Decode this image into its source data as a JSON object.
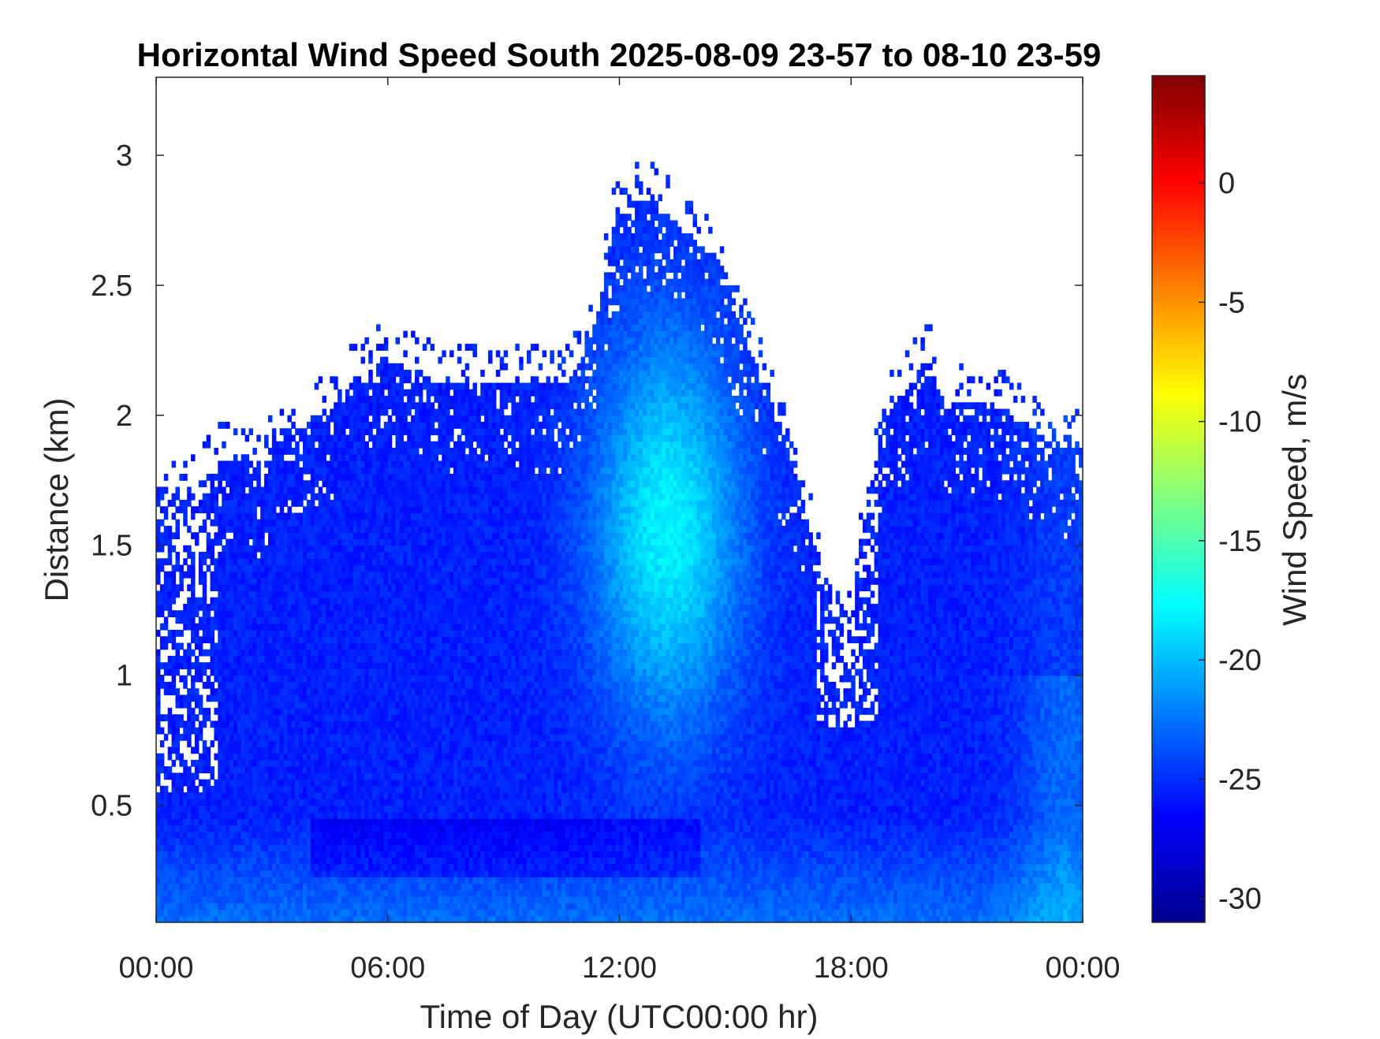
{
  "chart_data": {
    "type": "heatmap",
    "title": "Horizontal Wind Speed South 2025-08-09 23-57 to 08-10 23-59",
    "xlabel": "Time of Day (UTC00:00 hr)",
    "ylabel": "Distance (km)",
    "colorbar_label": "Wind Speed, m/s",
    "colormap": "jet",
    "x_ticks": [
      {
        "value": 0,
        "label": "00:00"
      },
      {
        "value": 6,
        "label": "06:00"
      },
      {
        "value": 12,
        "label": "12:00"
      },
      {
        "value": 18,
        "label": "18:00"
      },
      {
        "value": 24,
        "label": "00:00"
      }
    ],
    "y_ticks": [
      {
        "value": 0.5,
        "label": "0.5"
      },
      {
        "value": 1,
        "label": "1"
      },
      {
        "value": 1.5,
        "label": "1.5"
      },
      {
        "value": 2,
        "label": "2"
      },
      {
        "value": 2.5,
        "label": "2.5"
      },
      {
        "value": 3,
        "label": "3"
      }
    ],
    "colorbar_ticks": [
      {
        "value": 0,
        "label": "0"
      },
      {
        "value": -5,
        "label": "-5"
      },
      {
        "value": -10,
        "label": "-10"
      },
      {
        "value": -15,
        "label": "-15"
      },
      {
        "value": -20,
        "label": "-20"
      },
      {
        "value": -25,
        "label": "-25"
      },
      {
        "value": -30,
        "label": "-30"
      }
    ],
    "xlim": [
      0,
      24
    ],
    "ylim": [
      0.05,
      3.3
    ],
    "clim": [
      -31,
      4.5
    ],
    "data_top_km": [
      [
        0.0,
        1.7
      ],
      [
        1.0,
        1.7
      ],
      [
        1.5,
        1.8
      ],
      [
        2.5,
        1.8
      ],
      [
        2.8,
        1.7
      ],
      [
        3.0,
        1.9
      ],
      [
        3.5,
        1.95
      ],
      [
        4.5,
        2.0
      ],
      [
        5.0,
        2.1
      ],
      [
        6.0,
        2.2
      ],
      [
        7.5,
        2.1
      ],
      [
        9.0,
        2.1
      ],
      [
        10.5,
        2.1
      ],
      [
        11.0,
        2.2
      ],
      [
        11.5,
        2.4
      ],
      [
        11.8,
        2.7
      ],
      [
        12.2,
        2.8
      ],
      [
        13.0,
        2.8
      ],
      [
        13.5,
        2.7
      ],
      [
        14.5,
        2.6
      ],
      [
        15.0,
        2.35
      ],
      [
        15.5,
        2.2
      ],
      [
        16.0,
        2.0
      ],
      [
        16.5,
        1.8
      ],
      [
        17.0,
        1.5
      ],
      [
        17.5,
        1.3
      ],
      [
        18.0,
        1.2
      ],
      [
        18.5,
        1.8
      ],
      [
        19.0,
        2.0
      ],
      [
        19.5,
        2.1
      ],
      [
        20.0,
        2.2
      ],
      [
        20.5,
        2.0
      ],
      [
        21.0,
        2.05
      ],
      [
        22.0,
        2.0
      ],
      [
        23.0,
        1.9
      ],
      [
        24.0,
        1.85
      ]
    ]
  }
}
